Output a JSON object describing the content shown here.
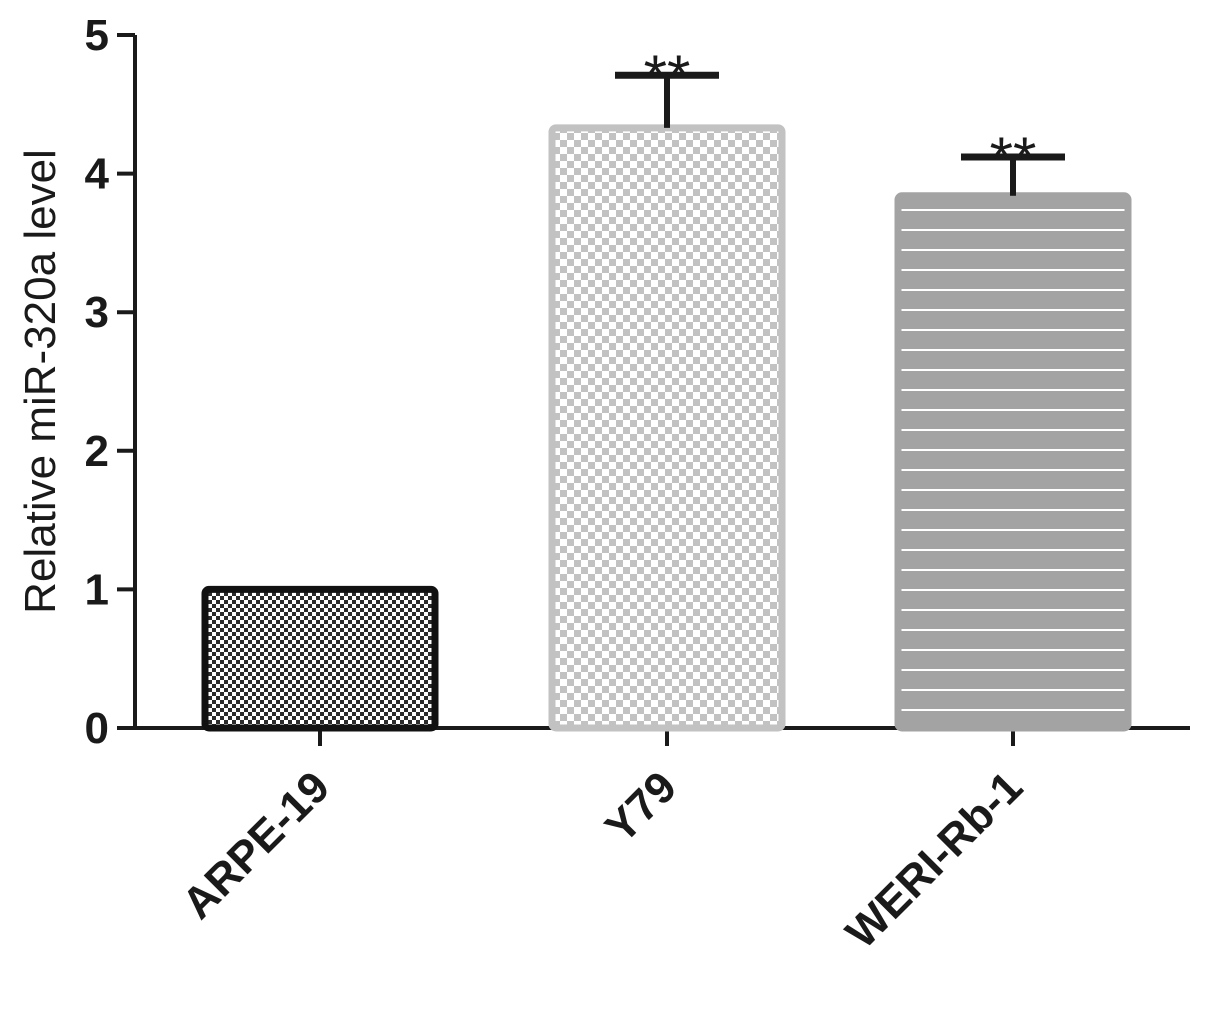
{
  "chart_data": {
    "type": "bar",
    "title": "",
    "xlabel": "",
    "ylabel": "Relative miR-320a level",
    "ylim": [
      0,
      5
    ],
    "yticks": [
      0,
      1,
      2,
      3,
      4,
      5
    ],
    "ytick_labels": [
      "0",
      "1",
      "2",
      "3",
      "4",
      "5"
    ],
    "categories": [
      "ARPE-19",
      "Y79",
      "WERI-Rb-1"
    ],
    "values": [
      1.0,
      4.33,
      3.84
    ],
    "error_upper": [
      0.0,
      0.38,
      0.28
    ],
    "annotations": [
      "",
      "**",
      "**"
    ],
    "grid": false,
    "legend": "none",
    "bar_styles": [
      {
        "fill": "#ffffff",
        "pattern": "#2b2b2b",
        "stroke": "#111111"
      },
      {
        "fill": "#ffffff",
        "pattern": "#c2c2c2",
        "stroke": "#c2c2c2"
      },
      {
        "fill": "#a3a3a3",
        "pattern": "#ffffff",
        "stroke": "#a3a3a3"
      }
    ],
    "axis_color": "#1a1a1a",
    "error_color": "#1a1a1a"
  }
}
